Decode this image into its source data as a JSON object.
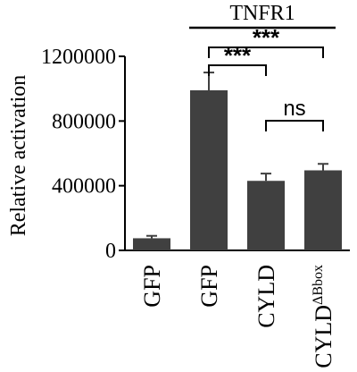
{
  "chart_data": {
    "type": "bar",
    "categories": [
      "GFP",
      "GFP",
      "CYLD",
      "CYLD"
    ],
    "category_superscripts": [
      "",
      "",
      "",
      "ΔBbox"
    ],
    "values": [
      75000,
      990000,
      430000,
      495000
    ],
    "errors": [
      15000,
      110000,
      45000,
      40000
    ],
    "ylabel": "Relative activation",
    "ylim": [
      0,
      1200000
    ],
    "yticks": [
      "0",
      "400000",
      "800000",
      "1200000"
    ],
    "ytick_values": [
      0,
      400000,
      800000,
      1200000
    ],
    "group_label": "TNFR1",
    "significance": [
      {
        "label": "***",
        "from": 1,
        "to": 2
      },
      {
        "label": "***",
        "from": 1,
        "to": 3
      },
      {
        "label": "ns",
        "from": 2,
        "to": 3
      }
    ],
    "colors": {
      "bar": "#404040",
      "axis": "#000000"
    }
  }
}
